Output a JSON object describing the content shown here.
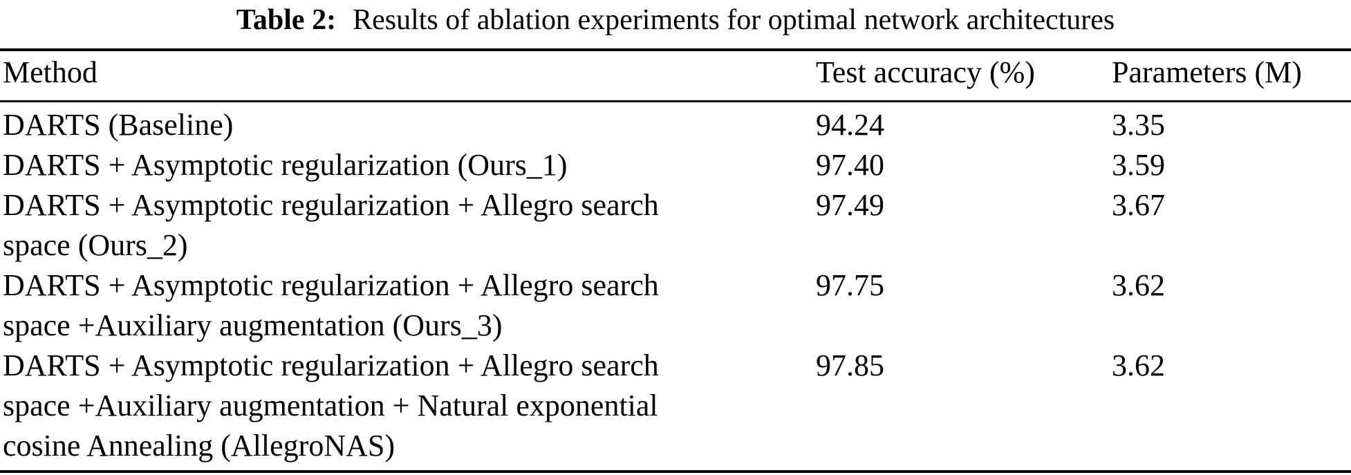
{
  "caption": {
    "label": "Table 2:",
    "text": "Results of ablation experiments for optimal network architectures"
  },
  "table": {
    "columns": {
      "method": "Method",
      "test_accuracy": "Test accuracy (%)",
      "parameters": "Parameters (M)"
    },
    "rows": [
      {
        "method": "DARTS (Baseline)",
        "method_lines": [
          "DARTS (Baseline)"
        ],
        "test_accuracy": "94.24",
        "parameters": "3.35"
      },
      {
        "method": "DARTS + Asymptotic regularization (Ours_1)",
        "method_lines": [
          "DARTS + Asymptotic regularization (Ours_1)"
        ],
        "test_accuracy": "97.40",
        "parameters": "3.59"
      },
      {
        "method": "DARTS + Asymptotic regularization + Allegro search space (Ours_2)",
        "method_lines": [
          "DARTS + Asymptotic regularization + Allegro search",
          "space (Ours_2)"
        ],
        "test_accuracy": "97.49",
        "parameters": "3.67"
      },
      {
        "method": "DARTS + Asymptotic regularization + Allegro search space +Auxiliary augmentation (Ours_3)",
        "method_lines": [
          "DARTS + Asymptotic regularization + Allegro search",
          "space +Auxiliary augmentation (Ours_3)"
        ],
        "test_accuracy": "97.75",
        "parameters": "3.62"
      },
      {
        "method": "DARTS + Asymptotic regularization + Allegro search space +Auxiliary augmentation + Natural exponential cosine Annealing (AllegroNAS)",
        "method_lines": [
          "DARTS + Asymptotic regularization + Allegro search",
          "space +Auxiliary augmentation + Natural exponential",
          "cosine Annealing (AllegroNAS)"
        ],
        "test_accuracy": "97.85",
        "parameters": "3.62"
      }
    ]
  },
  "colors": {
    "text": "#000000",
    "background": "#ffffff",
    "rule": "#000000"
  }
}
